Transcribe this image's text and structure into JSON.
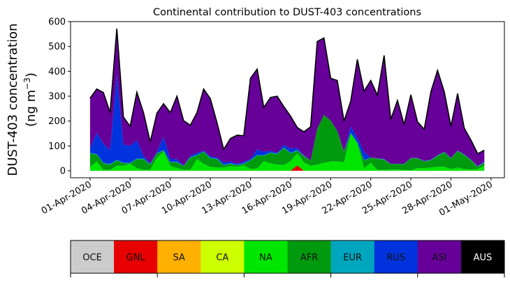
{
  "chart_data": {
    "type": "area",
    "stacked": true,
    "title": "Continental contribution to DUST-403 concentrations",
    "ylabel_line1": "DUST-403 concentration",
    "ylabel_line2": "(ng m",
    "ylabel_sup": "−3",
    "ylabel_close": ")",
    "xlabel": "",
    "ylim": [
      -28,
      600
    ],
    "xlim": [
      "2020-03-30T13:00",
      "2020-05-02T00:00"
    ],
    "yticks": [
      0,
      100,
      200,
      300,
      400,
      500,
      600
    ],
    "xticks": [
      {
        "date": "2020-04-01",
        "label": "01-Apr-2020"
      },
      {
        "date": "2020-04-04",
        "label": "04-Apr-2020"
      },
      {
        "date": "2020-04-07",
        "label": "07-Apr-2020"
      },
      {
        "date": "2020-04-10",
        "label": "10-Apr-2020"
      },
      {
        "date": "2020-04-13",
        "label": "13-Apr-2020"
      },
      {
        "date": "2020-04-16",
        "label": "16-Apr-2020"
      },
      {
        "date": "2020-04-19",
        "label": "19-Apr-2020"
      },
      {
        "date": "2020-04-22",
        "label": "22-Apr-2020"
      },
      {
        "date": "2020-04-25",
        "label": "25-Apr-2020"
      },
      {
        "date": "2020-04-28",
        "label": "28-Apr-2020"
      },
      {
        "date": "2020-05-01",
        "label": "01-May-2020"
      }
    ],
    "grid": false,
    "legend_placement": "bottom colorbar",
    "x": [
      "2020-04-01T00:00",
      "2020-04-01T12:00",
      "2020-04-02T00:00",
      "2020-04-02T12:00",
      "2020-04-03T00:00",
      "2020-04-03T12:00",
      "2020-04-04T00:00",
      "2020-04-04T12:00",
      "2020-04-05T00:00",
      "2020-04-05T12:00",
      "2020-04-06T00:00",
      "2020-04-06T12:00",
      "2020-04-07T00:00",
      "2020-04-07T12:00",
      "2020-04-08T00:00",
      "2020-04-08T12:00",
      "2020-04-09T00:00",
      "2020-04-09T12:00",
      "2020-04-10T00:00",
      "2020-04-10T12:00",
      "2020-04-11T00:00",
      "2020-04-11T12:00",
      "2020-04-12T00:00",
      "2020-04-12T12:00",
      "2020-04-13T00:00",
      "2020-04-13T12:00",
      "2020-04-14T00:00",
      "2020-04-14T12:00",
      "2020-04-15T00:00",
      "2020-04-15T12:00",
      "2020-04-16T00:00",
      "2020-04-16T12:00",
      "2020-04-17T00:00",
      "2020-04-17T12:00",
      "2020-04-18T00:00",
      "2020-04-18T12:00",
      "2020-04-19T00:00",
      "2020-04-19T12:00",
      "2020-04-20T00:00",
      "2020-04-20T12:00",
      "2020-04-21T00:00",
      "2020-04-21T12:00",
      "2020-04-22T00:00",
      "2020-04-22T12:00",
      "2020-04-23T00:00",
      "2020-04-23T12:00",
      "2020-04-24T00:00",
      "2020-04-24T12:00",
      "2020-04-25T00:00",
      "2020-04-25T12:00",
      "2020-04-26T00:00",
      "2020-04-26T12:00",
      "2020-04-27T00:00",
      "2020-04-27T12:00",
      "2020-04-28T00:00",
      "2020-04-28T12:00",
      "2020-04-29T00:00",
      "2020-04-29T12:00",
      "2020-04-30T00:00",
      "2020-04-30T12:00"
    ],
    "series": [
      {
        "name": "OCE",
        "color": "#cccccc",
        "values": [
          0,
          0,
          0,
          0,
          0,
          0,
          0,
          0,
          0,
          0,
          0,
          0,
          0,
          0,
          0,
          0,
          0,
          0,
          0,
          0,
          0,
          0,
          0,
          0,
          0,
          0,
          0,
          0,
          0,
          0,
          0,
          0,
          0,
          0,
          0,
          0,
          0,
          0,
          0,
          0,
          0,
          0,
          0,
          0,
          0,
          0,
          0,
          0,
          0,
          0,
          0,
          0,
          0,
          0,
          0,
          0,
          0,
          0,
          0,
          0
        ]
      },
      {
        "name": "GNL",
        "color": "#e60000",
        "values": [
          0,
          0,
          0,
          0,
          0,
          0,
          0,
          0,
          0,
          0,
          0,
          0,
          0,
          0,
          0,
          0,
          0,
          0,
          0,
          0,
          0,
          0,
          0,
          0,
          0,
          0,
          0,
          0,
          0,
          0,
          0,
          22,
          0,
          0,
          0,
          0,
          0,
          0,
          0,
          0,
          0,
          0,
          0,
          0,
          0,
          0,
          0,
          0,
          0,
          0,
          0,
          0,
          0,
          0,
          0,
          0,
          0,
          0,
          0,
          0
        ]
      },
      {
        "name": "SA",
        "color": "#ffb000",
        "values": [
          0,
          0,
          0,
          0,
          0,
          0,
          0,
          0,
          0,
          0,
          0,
          0,
          0,
          0,
          0,
          0,
          0,
          0,
          0,
          0,
          0,
          0,
          0,
          0,
          0,
          0,
          0,
          0,
          0,
          0,
          0,
          0,
          0,
          0,
          0,
          0,
          0,
          0,
          0,
          0,
          0,
          0,
          0,
          0,
          0,
          0,
          0,
          0,
          0,
          0,
          0,
          0,
          0,
          0,
          0,
          0,
          0,
          0,
          0,
          0
        ]
      },
      {
        "name": "CA",
        "color": "#ccff00",
        "values": [
          0,
          0,
          0,
          0,
          0,
          0,
          0,
          0,
          0,
          0,
          0,
          0,
          0,
          0,
          0,
          0,
          0,
          0,
          0,
          0,
          0,
          0,
          0,
          0,
          0,
          0,
          0,
          0,
          0,
          0,
          0,
          0,
          0,
          0,
          0,
          0,
          0,
          0,
          0,
          0,
          0,
          0,
          0,
          0,
          0,
          0,
          0,
          0,
          0,
          0,
          0,
          0,
          0,
          0,
          0,
          0,
          0,
          0,
          0,
          0
        ]
      },
      {
        "name": "NA",
        "color": "#00e600",
        "values": [
          16,
          37,
          4,
          4,
          20,
          20,
          28,
          11,
          4,
          4,
          53,
          78,
          20,
          11,
          4,
          4,
          47,
          28,
          16,
          13,
          13,
          19,
          16,
          22,
          7,
          9,
          39,
          30,
          25,
          23,
          39,
          48,
          34,
          20,
          25,
          32,
          37,
          37,
          34,
          146,
          109,
          11,
          32,
          4,
          4,
          5,
          5,
          4,
          2,
          11,
          11,
          13,
          16,
          16,
          7,
          13,
          7,
          5,
          7,
          20
        ]
      },
      {
        "name": "AFR",
        "color": "#009a0e",
        "values": [
          54,
          28,
          26,
          21,
          22,
          10,
          2,
          36,
          43,
          21,
          16,
          3,
          14,
          23,
          15,
          49,
          15,
          48,
          34,
          34,
          9,
          9,
          6,
          6,
          34,
          53,
          21,
          42,
          42,
          69,
          31,
          11,
          24,
          21,
          144,
          193,
          165,
          123,
          42,
          5,
          4,
          30,
          21,
          44,
          40,
          22,
          22,
          23,
          48,
          39,
          26,
          29,
          44,
          58,
          43,
          66,
          56,
          37,
          9,
          12
        ]
      },
      {
        "name": "EUR",
        "color": "#00a6be",
        "values": [
          2,
          2,
          2,
          2,
          2,
          2,
          2,
          2,
          2,
          2,
          2,
          2,
          2,
          2,
          1,
          2,
          2,
          2,
          2,
          2,
          2,
          2,
          2,
          2,
          2,
          2,
          2,
          2,
          2,
          2,
          2,
          2,
          2,
          0,
          0,
          0,
          0,
          0,
          2,
          2,
          2,
          2,
          0,
          2,
          2,
          1,
          1,
          1,
          1,
          1,
          2,
          2,
          2,
          2,
          1,
          2,
          2,
          2,
          2,
          2
        ]
      },
      {
        "name": "RUS",
        "color": "#0033dd",
        "values": [
          18,
          86,
          77,
          57,
          344,
          74,
          68,
          74,
          11,
          3,
          5,
          54,
          12,
          11,
          0,
          5,
          8,
          3,
          6,
          4,
          10,
          7,
          4,
          7,
          4,
          22,
          14,
          7,
          3,
          10,
          18,
          9,
          2,
          0,
          0,
          0,
          0,
          0,
          0,
          26,
          17,
          33,
          0,
          0,
          1,
          0,
          0,
          0,
          0,
          0,
          0,
          0,
          0,
          0,
          0,
          0,
          0,
          0,
          1,
          3
        ]
      },
      {
        "name": "ASI",
        "color": "#660099",
        "values": [
          202,
          176,
          206,
          150,
          184,
          110,
          79,
          193,
          174,
          86,
          156,
          133,
          186,
          253,
          182,
          123,
          162,
          248,
          232,
          140,
          52,
          93,
          115,
          104,
          325,
          323,
          179,
          214,
          228,
          154,
          130,
          82,
          95,
          136,
          351,
          309,
          170,
          203,
          122,
          101,
          316,
          244,
          310,
          254,
          417,
          179,
          255,
          158,
          255,
          146,
          128,
          274,
          342,
          242,
          128,
          230,
          106,
          79,
          50,
          46
        ]
      },
      {
        "name": "AUS",
        "color": "#000000",
        "values": [
          0,
          0,
          0,
          0,
          0,
          0,
          0,
          0,
          0,
          0,
          0,
          0,
          0,
          0,
          0,
          0,
          0,
          0,
          0,
          0,
          0,
          0,
          0,
          0,
          0,
          0,
          0,
          0,
          0,
          0,
          0,
          0,
          0,
          0,
          0,
          0,
          0,
          0,
          0,
          0,
          0,
          0,
          0,
          0,
          0,
          0,
          0,
          0,
          0,
          0,
          0,
          0,
          0,
          0,
          0,
          0,
          0,
          0,
          0,
          0
        ]
      }
    ],
    "total_line_color": "#000000",
    "legend_text_colors": {
      "AUS": "#ffffff",
      "default": "#111111"
    }
  }
}
